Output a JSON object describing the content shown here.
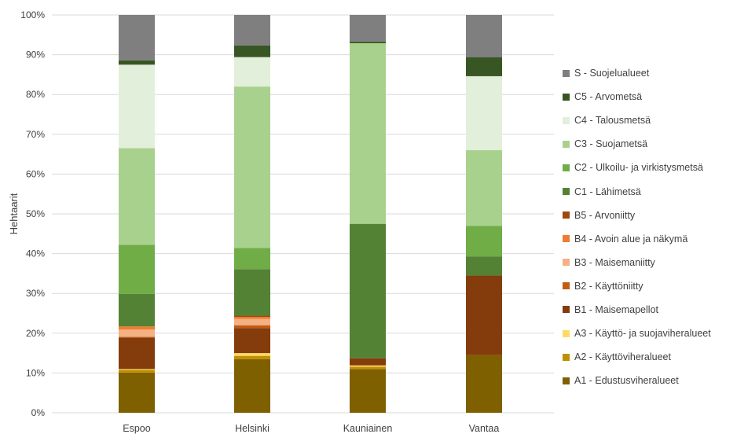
{
  "chart_data": {
    "type": "bar",
    "stacked": true,
    "percent": true,
    "title": "",
    "xlabel": "",
    "ylabel": "Hehtaarit",
    "ylim": [
      0,
      100
    ],
    "yticks": [
      "0%",
      "10%",
      "20%",
      "30%",
      "40%",
      "50%",
      "60%",
      "70%",
      "80%",
      "90%",
      "100%"
    ],
    "grid": true,
    "legend_position": "right",
    "categories": [
      "Espoo",
      "Helsinki",
      "Kauniainen",
      "Vantaa"
    ],
    "series": [
      {
        "name": "A1 - Edustusviheralueet",
        "color": "#7f6000",
        "values": [
          10.1,
          13.5,
          11.0,
          14.5
        ]
      },
      {
        "name": "A2 - Käyttöviheralueet",
        "color": "#bf9000",
        "values": [
          0.7,
          0.8,
          0.6,
          0
        ]
      },
      {
        "name": "A3 - Käyttö- ja suojaviheralueet",
        "color": "#ffd966",
        "values": [
          0.2,
          0.7,
          0.3,
          0
        ]
      },
      {
        "name": "B1 - Maisemapellot",
        "color": "#843c0c",
        "values": [
          7.9,
          6.3,
          1.8,
          20.0
        ]
      },
      {
        "name": "B2 - Käyttöniitty",
        "color": "#c55a11",
        "values": [
          0.2,
          0.7,
          0,
          0
        ]
      },
      {
        "name": "B3 - Maisemaniitty",
        "color": "#f4b183",
        "values": [
          1.8,
          1.6,
          0,
          0
        ]
      },
      {
        "name": "B4 - Avoin alue ja näkymä",
        "color": "#ed7d31",
        "values": [
          0.8,
          0.5,
          0,
          0
        ]
      },
      {
        "name": "B5 - Arvoniitty",
        "color": "#9e480e",
        "values": [
          0,
          0.3,
          0,
          0
        ]
      },
      {
        "name": "C1 - Lähimetsä",
        "color": "#548235",
        "values": [
          8.2,
          11.7,
          33.8,
          4.8
        ]
      },
      {
        "name": "C2 - Ulkoilu- ja virkistysmetsä",
        "color": "#70ad47",
        "values": [
          12.3,
          5.3,
          0,
          7.7
        ]
      },
      {
        "name": "C3 - Suojametsä",
        "color": "#a9d18e",
        "values": [
          24.3,
          40.6,
          45.4,
          19.0
        ]
      },
      {
        "name": "C4 - Talousmetsä",
        "color": "#e2efda",
        "values": [
          21.0,
          7.4,
          0,
          18.6
        ]
      },
      {
        "name": "C5 - Arvometsä",
        "color": "#375623",
        "values": [
          1.1,
          2.9,
          0.4,
          4.8
        ]
      },
      {
        "name": "S - Suojelualueet",
        "color": "#7f7f7f",
        "values": [
          11.4,
          7.7,
          6.7,
          10.6
        ]
      }
    ]
  }
}
